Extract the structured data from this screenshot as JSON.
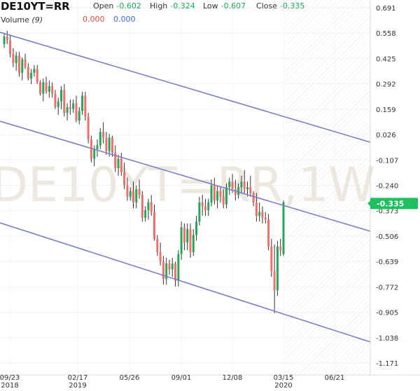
{
  "header": {
    "symbol": "DE10YT=RR",
    "open_label": "Open",
    "open_value": "-0.602",
    "high_label": "High",
    "high_value": "-0.324",
    "low_label": "Low",
    "low_value": "-0.607",
    "close_label": "Close",
    "close_value": "-0.335",
    "volume_label": "Volume",
    "volume_period": "(9)",
    "volume_value_a": "0.000",
    "volume_value_b": "0.000"
  },
  "colors": {
    "up": "#26a65b",
    "down": "#ef6f6a",
    "channel": "#7b7fc6",
    "last_price_tag": "#1fbf5f",
    "watermark": "#ece7df"
  },
  "chart_data": {
    "type": "candlestick",
    "watermark": "DE10YT=RR,1W",
    "last_price": "-0.335",
    "y_ticks": [
      "0.691",
      "0.558",
      "0.425",
      "0.292",
      "0.159",
      "0.026",
      "-0.107",
      "-0.240",
      "-0.373",
      "-0.506",
      "-0.639",
      "-0.772",
      "-0.905",
      "-1.038",
      "-1.171"
    ],
    "ylim": [
      -1.171,
      0.691
    ],
    "x_ticks": [
      {
        "label": "09/23",
        "sub": "2018"
      },
      {
        "label": "02/17",
        "sub": "2019"
      },
      {
        "label": "05/26",
        "sub": ""
      },
      {
        "label": "09/01",
        "sub": ""
      },
      {
        "label": "12/08",
        "sub": ""
      },
      {
        "label": "03/15",
        "sub": "2020"
      },
      {
        "label": "06/21",
        "sub": ""
      }
    ],
    "ohlc": [
      [
        0.5,
        0.56,
        0.48,
        0.54
      ],
      [
        0.54,
        0.57,
        0.5,
        0.52
      ],
      [
        0.52,
        0.55,
        0.43,
        0.45
      ],
      [
        0.45,
        0.48,
        0.38,
        0.4
      ],
      [
        0.4,
        0.46,
        0.36,
        0.44
      ],
      [
        0.44,
        0.46,
        0.33,
        0.35
      ],
      [
        0.35,
        0.43,
        0.31,
        0.42
      ],
      [
        0.42,
        0.45,
        0.37,
        0.38
      ],
      [
        0.38,
        0.4,
        0.31,
        0.32
      ],
      [
        0.32,
        0.37,
        0.29,
        0.35
      ],
      [
        0.35,
        0.39,
        0.33,
        0.37
      ],
      [
        0.37,
        0.39,
        0.29,
        0.3
      ],
      [
        0.3,
        0.31,
        0.23,
        0.24
      ],
      [
        0.24,
        0.32,
        0.2,
        0.3
      ],
      [
        0.3,
        0.33,
        0.24,
        0.25
      ],
      [
        0.25,
        0.31,
        0.22,
        0.28
      ],
      [
        0.28,
        0.3,
        0.22,
        0.24
      ],
      [
        0.24,
        0.26,
        0.16,
        0.17
      ],
      [
        0.17,
        0.22,
        0.13,
        0.2
      ],
      [
        0.2,
        0.28,
        0.16,
        0.26
      ],
      [
        0.26,
        0.29,
        0.12,
        0.14
      ],
      [
        0.14,
        0.19,
        0.1,
        0.17
      ],
      [
        0.17,
        0.21,
        0.13,
        0.16
      ],
      [
        0.16,
        0.21,
        0.14,
        0.19
      ],
      [
        0.19,
        0.23,
        0.09,
        0.1
      ],
      [
        0.1,
        0.17,
        0.08,
        0.15
      ],
      [
        0.15,
        0.25,
        0.13,
        0.23
      ],
      [
        0.23,
        0.25,
        0.1,
        0.12
      ],
      [
        0.12,
        0.14,
        -0.02,
        0.0
      ],
      [
        0.0,
        0.02,
        -0.12,
        -0.1
      ],
      [
        -0.1,
        -0.03,
        -0.14,
        -0.05
      ],
      [
        -0.05,
        0.0,
        -0.09,
        -0.03
      ],
      [
        -0.03,
        0.06,
        -0.05,
        0.04
      ],
      [
        0.04,
        0.09,
        -0.02,
        0.01
      ],
      [
        0.01,
        0.04,
        -0.08,
        -0.06
      ],
      [
        -0.06,
        0.03,
        -0.09,
        0.01
      ],
      [
        0.01,
        0.02,
        -0.09,
        -0.07
      ],
      [
        -0.07,
        -0.03,
        -0.17,
        -0.15
      ],
      [
        -0.15,
        -0.08,
        -0.19,
        -0.1
      ],
      [
        -0.1,
        -0.07,
        -0.19,
        -0.17
      ],
      [
        -0.17,
        -0.12,
        -0.26,
        -0.24
      ],
      [
        -0.24,
        -0.2,
        -0.32,
        -0.3
      ],
      [
        -0.3,
        -0.25,
        -0.32,
        -0.27
      ],
      [
        -0.27,
        -0.22,
        -0.36,
        -0.33
      ],
      [
        -0.33,
        -0.24,
        -0.36,
        -0.26
      ],
      [
        -0.26,
        -0.21,
        -0.31,
        -0.29
      ],
      [
        -0.29,
        -0.27,
        -0.43,
        -0.41
      ],
      [
        -0.41,
        -0.35,
        -0.43,
        -0.37
      ],
      [
        -0.37,
        -0.31,
        -0.42,
        -0.33
      ],
      [
        -0.33,
        -0.29,
        -0.4,
        -0.38
      ],
      [
        -0.38,
        -0.34,
        -0.53,
        -0.52
      ],
      [
        -0.52,
        -0.5,
        -0.61,
        -0.59
      ],
      [
        -0.59,
        -0.54,
        -0.66,
        -0.64
      ],
      [
        -0.64,
        -0.61,
        -0.76,
        -0.73
      ],
      [
        -0.73,
        -0.62,
        -0.76,
        -0.65
      ],
      [
        -0.65,
        -0.63,
        -0.71,
        -0.68
      ],
      [
        -0.68,
        -0.62,
        -0.72,
        -0.65
      ],
      [
        -0.65,
        -0.64,
        -0.77,
        -0.74
      ],
      [
        -0.74,
        -0.58,
        -0.77,
        -0.6
      ],
      [
        -0.6,
        -0.43,
        -0.63,
        -0.46
      ],
      [
        -0.46,
        -0.44,
        -0.58,
        -0.54
      ],
      [
        -0.54,
        -0.44,
        -0.58,
        -0.47
      ],
      [
        -0.47,
        -0.44,
        -0.62,
        -0.59
      ],
      [
        -0.59,
        -0.47,
        -0.61,
        -0.5
      ],
      [
        -0.5,
        -0.4,
        -0.53,
        -0.43
      ],
      [
        -0.43,
        -0.3,
        -0.45,
        -0.33
      ],
      [
        -0.33,
        -0.29,
        -0.4,
        -0.35
      ],
      [
        -0.35,
        -0.31,
        -0.4,
        -0.37
      ],
      [
        -0.37,
        -0.31,
        -0.4,
        -0.33
      ],
      [
        -0.33,
        -0.21,
        -0.35,
        -0.24
      ],
      [
        -0.24,
        -0.2,
        -0.34,
        -0.32
      ],
      [
        -0.32,
        -0.24,
        -0.36,
        -0.27
      ],
      [
        -0.27,
        -0.25,
        -0.33,
        -0.3
      ],
      [
        -0.3,
        -0.26,
        -0.36,
        -0.34
      ],
      [
        -0.34,
        -0.23,
        -0.36,
        -0.25
      ],
      [
        -0.25,
        -0.2,
        -0.29,
        -0.22
      ],
      [
        -0.22,
        -0.18,
        -0.28,
        -0.26
      ],
      [
        -0.26,
        -0.21,
        -0.32,
        -0.29
      ],
      [
        -0.29,
        -0.23,
        -0.31,
        -0.25
      ],
      [
        -0.25,
        -0.19,
        -0.28,
        -0.22
      ],
      [
        -0.22,
        -0.16,
        -0.28,
        -0.26
      ],
      [
        -0.26,
        -0.22,
        -0.3,
        -0.25
      ],
      [
        -0.25,
        -0.19,
        -0.3,
        -0.28
      ],
      [
        -0.28,
        -0.27,
        -0.35,
        -0.33
      ],
      [
        -0.33,
        -0.28,
        -0.43,
        -0.4
      ],
      [
        -0.4,
        -0.33,
        -0.43,
        -0.38
      ],
      [
        -0.38,
        -0.35,
        -0.44,
        -0.41
      ],
      [
        -0.41,
        -0.38,
        -0.44,
        -0.42
      ],
      [
        -0.42,
        -0.39,
        -0.58,
        -0.56
      ],
      [
        -0.56,
        -0.52,
        -0.72,
        -0.69
      ],
      [
        -0.69,
        -0.55,
        -0.91,
        -0.79
      ],
      [
        -0.79,
        -0.53,
        -0.82,
        -0.56
      ],
      [
        -0.56,
        -0.52,
        -0.61,
        -0.58
      ],
      [
        -0.6,
        -0.32,
        -0.61,
        -0.33
      ]
    ]
  }
}
